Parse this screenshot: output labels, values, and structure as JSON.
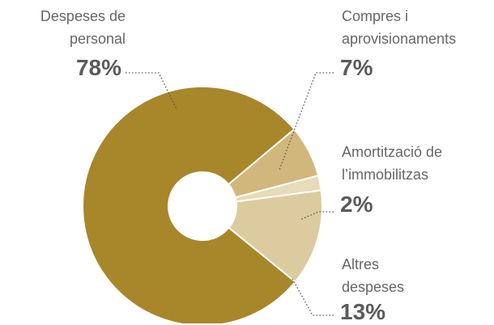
{
  "chart_data": {
    "type": "pie",
    "categories": [
      "Despeses de personal",
      "Compres i aprovisionaments",
      "Amortització de l’immobilitzas",
      "Altres despeses"
    ],
    "values": [
      78,
      7,
      2,
      13
    ],
    "value_labels": [
      "78%",
      "7%",
      "2%",
      "13%"
    ],
    "colors": [
      "#a8862a",
      "#d1b77c",
      "#e8dbb9",
      "#dccb9f"
    ],
    "donut": true
  }
}
